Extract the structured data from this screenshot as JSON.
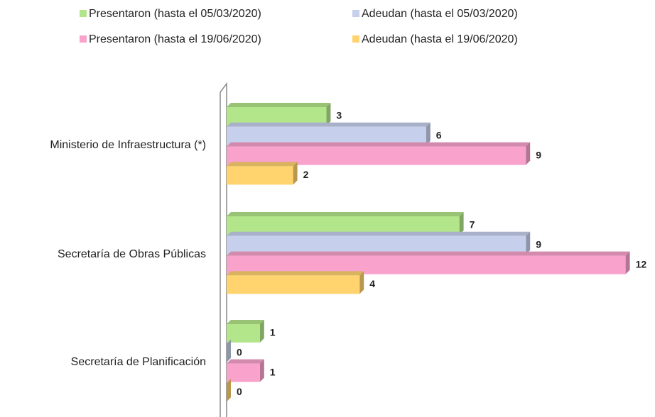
{
  "chart_data": {
    "type": "bar",
    "orientation": "horizontal",
    "categories": [
      "Ministerio de Infraestructura (*)",
      "Secretaría de Obras Públicas",
      "Secretaría de Planificación"
    ],
    "series": [
      {
        "name": "Presentaron (hasta el 05/03/2020)",
        "color": "#b3e58a",
        "values": [
          3,
          7,
          1
        ]
      },
      {
        "name": "Adeudan (hasta el 05/03/2020)",
        "color": "#c6d0ec",
        "values": [
          6,
          9,
          0
        ]
      },
      {
        "name": "Presentaron (hasta el 19/06/2020)",
        "color": "#f8a2cc",
        "values": [
          9,
          12,
          1
        ]
      },
      {
        "name": "Adeudan (hasta el 19/06/2020)",
        "color": "#ffd36e",
        "values": [
          2,
          4,
          0
        ]
      }
    ],
    "legend": "top"
  }
}
